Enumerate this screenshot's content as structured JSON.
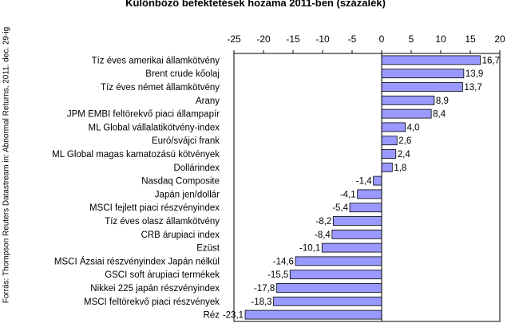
{
  "chart_data": {
    "type": "bar",
    "orientation": "horizontal",
    "title": "Különböző befektetések hozama 2011-ben (százalék)",
    "source": "Forrás: Thompson Reuters Datastream in: Abnormal Returns, 2011. dec. 29-ig",
    "xlim": [
      -25,
      20
    ],
    "ticks": [
      -25,
      -20,
      -15,
      -10,
      -5,
      0,
      5,
      10,
      15,
      20
    ],
    "grid": false,
    "bar_color": "#9999ff",
    "categories": [
      "Tíz éves amerikai államkötvény",
      "Brent crude kőolaj",
      "Tíz éves német államkötvény",
      "Arany",
      "JPM EMBI feltörekvő piaci állampapír",
      "ML Global vállalatikötvény-index",
      "Euró/svájci frank",
      "ML Global magas kamatozású kötvények",
      "Dollárindex",
      "Nasdaq Composite",
      "Japán jen/dollár",
      "MSCI fejlett piaci részvényindex",
      "Tíz éves olasz államkötvény",
      "CRB árupiaci index",
      "Ezüst",
      "MSCI Ázsiai részvényindex Japán nélkül",
      "GSCI soft árupiaci termékek",
      "Nikkei 225 japán részvényindex",
      "MSCI feltörekvő piaci részvények",
      "Réz"
    ],
    "values": [
      16.7,
      13.9,
      13.7,
      8.9,
      8.4,
      4.0,
      2.6,
      2.4,
      1.8,
      -1.4,
      -4.1,
      -5.4,
      -8.2,
      -8.4,
      -10.1,
      -14.6,
      -15.5,
      -17.8,
      -18.3,
      -23.1
    ],
    "value_labels": [
      "16,7",
      "13,9",
      "13,7",
      "8,9",
      "8,4",
      "4,0",
      "2,6",
      "2,4",
      "1,8",
      "-1,4",
      "-4,1",
      "-5,4",
      "-8,2",
      "-8,4",
      "-10,1",
      "-14,6",
      "-15,5",
      "-17,8",
      "-18,3",
      "-23,1"
    ]
  }
}
